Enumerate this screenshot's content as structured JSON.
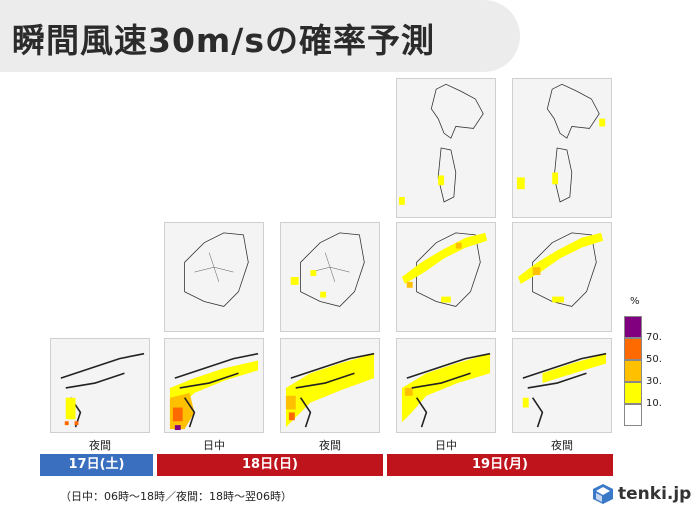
{
  "title": "瞬間風速30m/sの確率予測",
  "periods": {
    "p17_night": "夜間",
    "p18_day": "日中",
    "p18_night": "夜間",
    "p19_day": "日中",
    "p19_night": "夜間"
  },
  "days": [
    {
      "label": "17日(土)",
      "color": "#3a6fbf"
    },
    {
      "label": "18日(日)",
      "color": "#c0141c"
    },
    {
      "label": "19日(月)",
      "color": "#c0141c"
    }
  ],
  "footnote": "（日中：06時～18時／夜間：18時～翌06時）",
  "legend": {
    "unit": "%",
    "items": [
      {
        "label": "70.",
        "color": "#800080"
      },
      {
        "label": "50.",
        "color": "#ff6a00"
      },
      {
        "label": "30.",
        "color": "#ffc000"
      },
      {
        "label": "10.",
        "color": "#ffff00"
      },
      {
        "label": "",
        "color": "#ffffff"
      }
    ]
  },
  "logo": {
    "text": "tenki.jp",
    "icon": "tenki-logo-icon"
  }
}
